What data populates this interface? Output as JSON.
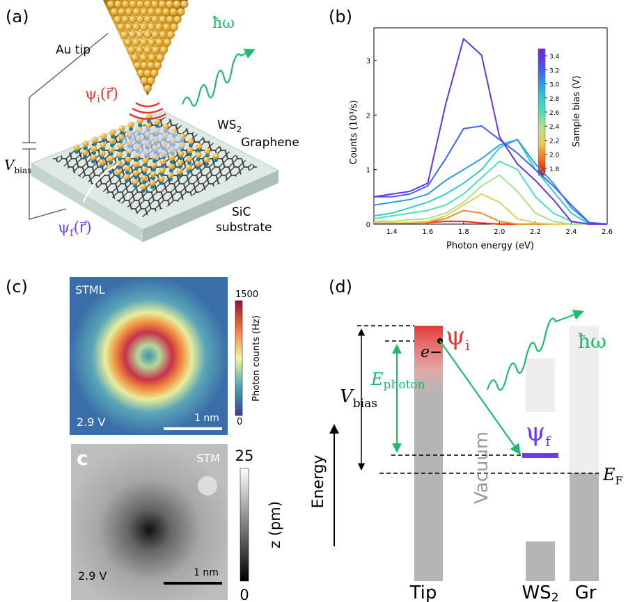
{
  "panel_a": {
    "label": "(a)",
    "tip": "Au tip",
    "photon": "ħω",
    "psi_i": {
      "symbol": "ψ",
      "sub": "i",
      "arg": "(r⃗)"
    },
    "ws2": {
      "main": "WS",
      "sub": "2"
    },
    "graphene": "Graphene",
    "v_bias": {
      "main": "V",
      "sub": "bias"
    },
    "psi_f": {
      "symbol": "ψ",
      "sub": "f",
      "arg": "(r⃗)"
    },
    "substrate": [
      "SiC",
      "substrate"
    ]
  },
  "panel_b": {
    "label": "(b)"
  },
  "chart_data": {
    "type": "line",
    "x_label": "Photon energy (eV)",
    "y_label": "Counts (10³/s)",
    "xlim": [
      1.3,
      2.6
    ],
    "xticks": [
      1.4,
      1.6,
      1.8,
      {
        "value": 2,
        "label": "2.0"
      },
      2.2,
      2.4,
      2.6
    ],
    "ylim": [
      0,
      3.6
    ],
    "yticks": [
      0,
      1,
      2,
      3
    ],
    "x": [
      1.3,
      1.4,
      1.5,
      1.6,
      1.7,
      1.8,
      1.9,
      2.0,
      2.1,
      2.2,
      2.3,
      2.4,
      2.5,
      2.6
    ],
    "colorbar": {
      "label": "Sample bias (V)",
      "lim": [
        1.7,
        3.5
      ],
      "ticks": [
        1.8,
        {
          "value": 2,
          "label": "2.0"
        },
        2.2,
        2.4,
        2.6,
        2.8,
        {
          "value": 3,
          "label": "3.0"
        },
        3.2,
        3.4
      ],
      "colors": [
        "#e8000b",
        "#f46d1a",
        "#f2c94c",
        "#b5e08a",
        "#4fe0b0",
        "#2fc7d6",
        "#2a8ef0",
        "#4b4cf0",
        "#7a1fe0"
      ]
    },
    "series": [
      {
        "bias": 1.8,
        "values": [
          0.02,
          0.02,
          0.02,
          0.03,
          0.05,
          0.05,
          0.02,
          0,
          0,
          0,
          0,
          0,
          0,
          0
        ]
      },
      {
        "bias": 2.0,
        "values": [
          0.02,
          0.02,
          0.02,
          0.04,
          0.1,
          0.25,
          0.2,
          0.05,
          0,
          0,
          0,
          0,
          0,
          0
        ]
      },
      {
        "bias": 2.2,
        "values": [
          0.02,
          0.02,
          0.03,
          0.05,
          0.15,
          0.35,
          0.55,
          0.4,
          0.1,
          0.02,
          0,
          0,
          0,
          0
        ]
      },
      {
        "bias": 2.4,
        "values": [
          0.05,
          0.05,
          0.08,
          0.1,
          0.2,
          0.4,
          0.7,
          0.9,
          0.6,
          0.2,
          0.05,
          0,
          0,
          0
        ]
      },
      {
        "bias": 2.6,
        "values": [
          0.1,
          0.15,
          0.2,
          0.25,
          0.35,
          0.55,
          0.85,
          1.15,
          1.0,
          0.5,
          0.2,
          0.05,
          0,
          0
        ]
      },
      {
        "bias": 2.8,
        "values": [
          0.15,
          0.2,
          0.3,
          0.4,
          0.55,
          0.75,
          1.0,
          1.4,
          1.55,
          1.0,
          0.6,
          0.2,
          0,
          0
        ]
      },
      {
        "bias": 3.0,
        "values": [
          0.35,
          0.4,
          0.45,
          0.55,
          0.8,
          1.0,
          1.2,
          1.45,
          1.55,
          1.1,
          0.75,
          0.3,
          0.02,
          0
        ]
      },
      {
        "bias": 3.2,
        "values": [
          0.5,
          0.5,
          0.55,
          0.7,
          1.2,
          1.75,
          1.8,
          1.55,
          1.3,
          1.0,
          0.7,
          0.35,
          0.03,
          0
        ]
      },
      {
        "bias": 3.4,
        "values": [
          0.5,
          0.55,
          0.6,
          0.75,
          2.2,
          3.4,
          3.1,
          1.6,
          1.1,
          0.8,
          0.45,
          0.05,
          0,
          0
        ]
      }
    ]
  },
  "panel_c": {
    "label": "(c)",
    "stml": {
      "title": "STML",
      "bar_max": "1500",
      "bar_min": "0",
      "bar_label": "Photon counts (Hz)",
      "bias": "2.9 V",
      "scale": "1 nm"
    },
    "stm": {
      "corner": "c",
      "title": "STM",
      "bar_max": "25",
      "bar_min": "0",
      "bar_label": "z (pm)",
      "bias": "2.9 V",
      "scale": "1 nm"
    }
  },
  "panel_d": {
    "label": "(d)",
    "psi_i": {
      "symbol": "ψ",
      "sub": "i"
    },
    "electron": "e−",
    "photon": "ħω",
    "e_photon": {
      "main": "E",
      "sub": "photon"
    },
    "v_bias": {
      "main": "V",
      "sub": "bias"
    },
    "psi_f": {
      "symbol": "ψ",
      "sub": "f"
    },
    "e_f": {
      "main": "E",
      "sub": "F"
    },
    "energy": "Energy",
    "vacuum": "Vacuum",
    "tip": "Tip",
    "ws2": {
      "main": "WS",
      "sub": "2"
    },
    "gr": "Gr"
  }
}
